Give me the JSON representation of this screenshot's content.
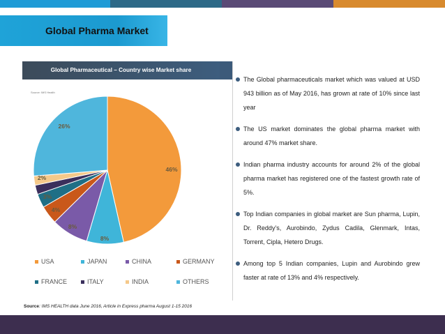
{
  "top_strip_colors": [
    "#1f9bd6",
    "#2d6987",
    "#5a4a76",
    "#d88a2e"
  ],
  "slide": {
    "title": "Global Pharma Market",
    "title_accent": "#1fa3d8",
    "footer_color": "#3d2e4f"
  },
  "chart_panel": {
    "header": "Global Pharmaceutical – Country wise Market share",
    "inner_source": "Source: IMS Health"
  },
  "chart_data": {
    "type": "pie",
    "title": "",
    "unit": "%",
    "slices": [
      {
        "name": "USA",
        "value": 46,
        "label": "46%",
        "color": "#f39a3b"
      },
      {
        "name": "JAPAN",
        "value": 8,
        "label": "8%",
        "color": "#3fb5d9"
      },
      {
        "name": "CHINA",
        "value": 8,
        "label": "8%",
        "color": "#7a5aa8"
      },
      {
        "name": "GERMANY",
        "value": 4,
        "label": "4%",
        "color": "#c9581a"
      },
      {
        "name": "FRANCE",
        "value": 3,
        "label": "3%",
        "color": "#1f6f86"
      },
      {
        "name": "ITALY",
        "value": 2,
        "label": "",
        "color": "#3b2f5c"
      },
      {
        "name": "INDIA",
        "value": 2,
        "label": "2%",
        "color": "#f5c98a"
      },
      {
        "name": "OTHERS",
        "value": 26,
        "label": "26%",
        "color": "#4fb6dc"
      }
    ],
    "legend_placement": "bottom"
  },
  "source": {
    "label": "Source",
    "text": ": IMS HEALTH data June 2016, Article in Express pharma August 1-15 2016"
  },
  "bullets": [
    "The Global pharmaceuticals market which was valued at USD 943 billion as of May 2016, has grown at rate of 10% since last year",
    "The US market dominates the global pharma market with around 47% market share.",
    "Indian pharma industry accounts for around 2% of the global pharma market has registered one of the fastest growth rate of 5%.",
    "Top Indian companies in global market are Sun pharma, Lupin, Dr. Reddy’s, Aurobindo, Zydus Cadila, Glenmark, Intas, Torrent, Cipla, Hetero Drugs.",
    "Among top 5 Indian companies, Lupin and Aurobindo grew faster at rate of 13% and 4% respectively."
  ]
}
